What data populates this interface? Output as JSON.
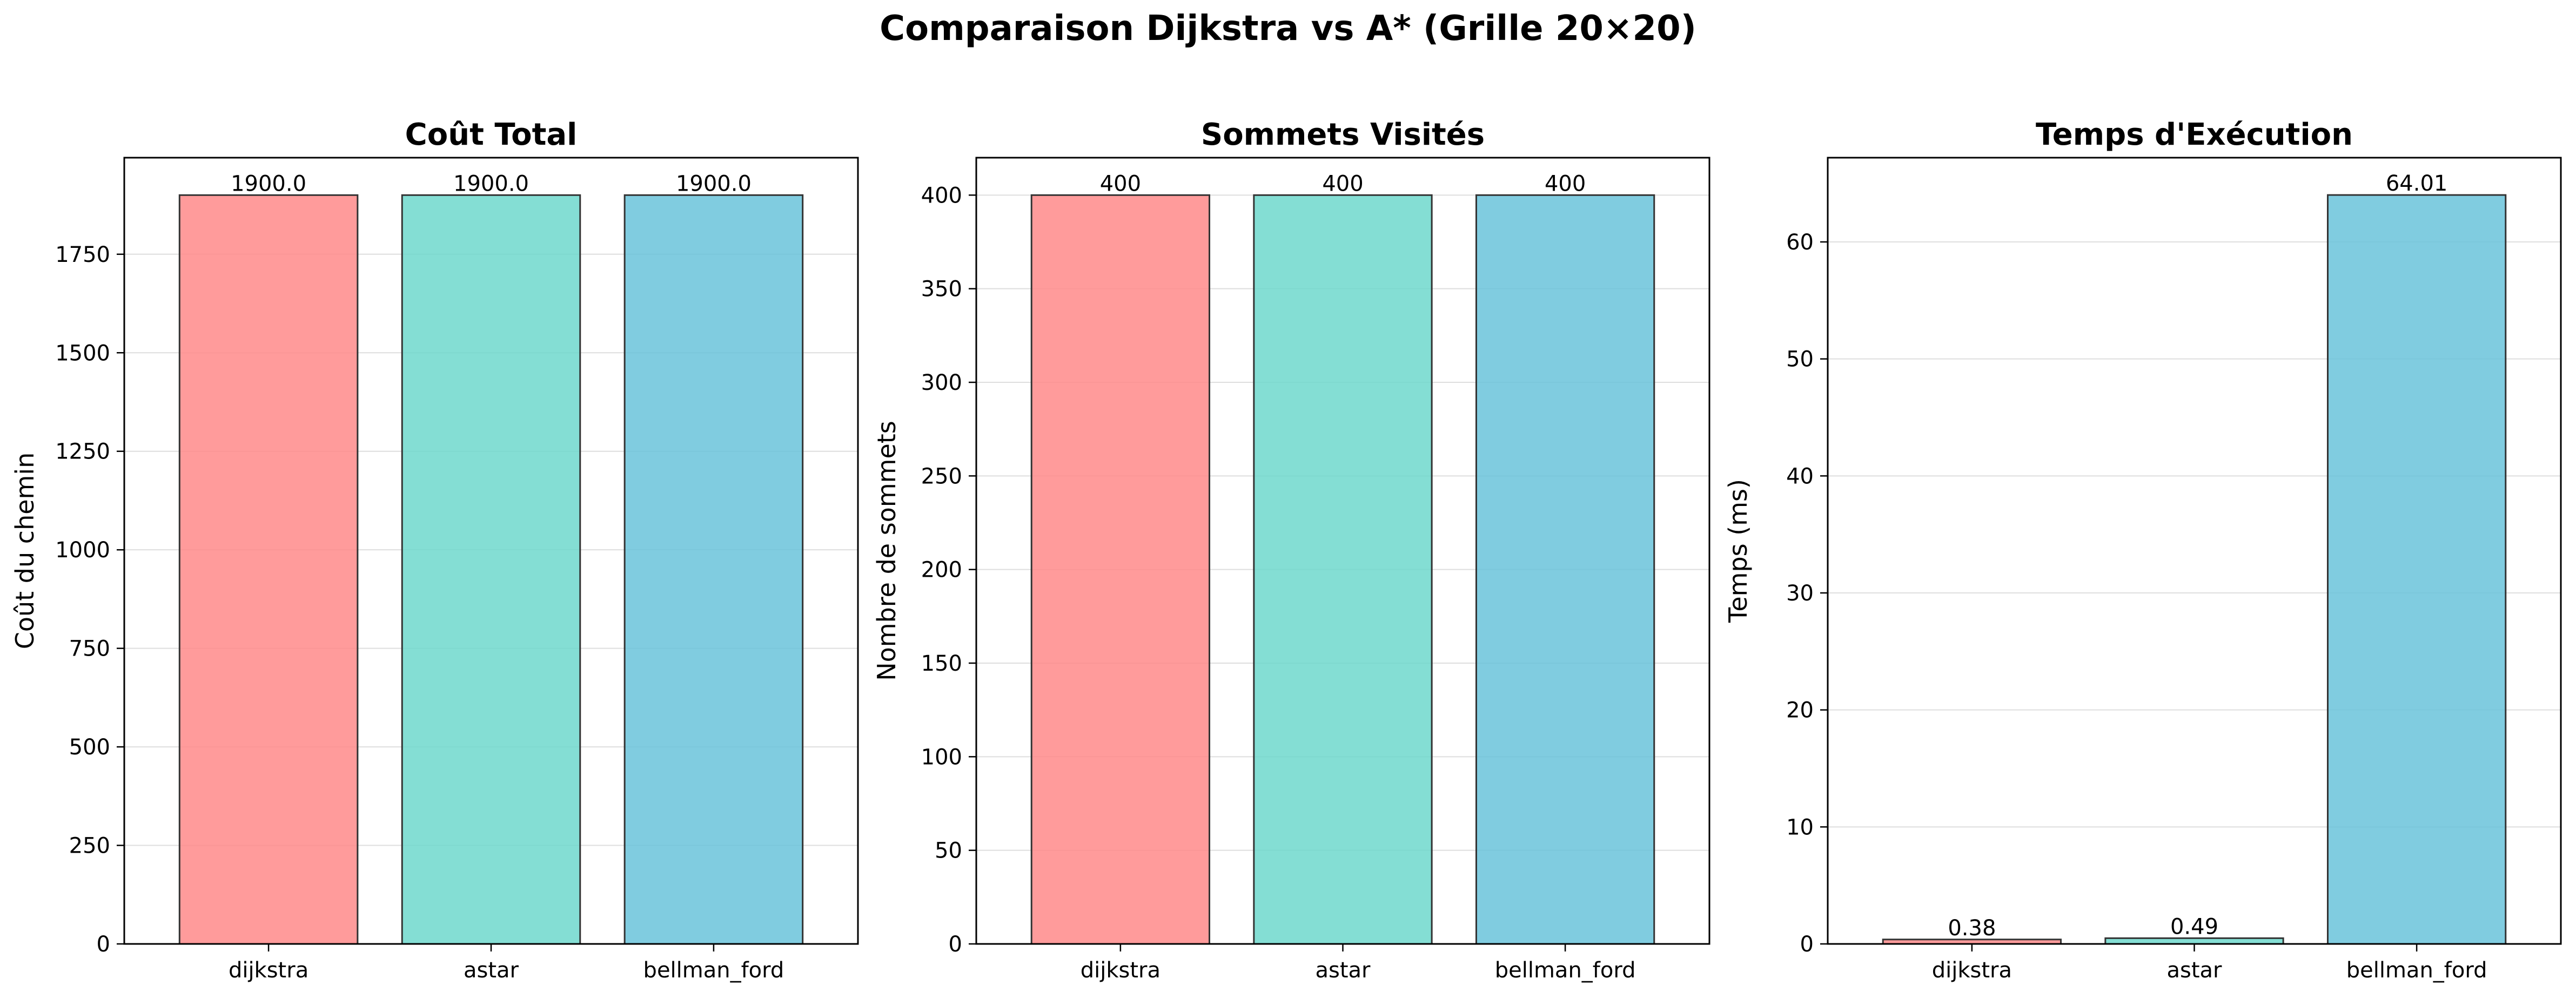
{
  "figure": {
    "suptitle": "Comparaison Dijkstra vs A* (Grille 20×20)"
  },
  "chart_data": [
    {
      "type": "bar",
      "title": "Coût Total",
      "xlabel": "",
      "ylabel": "Coût du chemin",
      "categories": [
        "dijkstra",
        "astar",
        "bellman_ford"
      ],
      "values": [
        1900.0,
        1900.0,
        1900.0
      ],
      "value_labels": [
        "1900.0",
        "1900.0",
        "1900.0"
      ],
      "ylim": [
        0,
        1995
      ],
      "yticks": [
        0,
        250,
        500,
        750,
        1000,
        1250,
        1500,
        1750
      ],
      "grid": "y",
      "colors": [
        "#FF8A8A",
        "#6FD8CC",
        "#6AC3DA"
      ]
    },
    {
      "type": "bar",
      "title": "Sommets Visités",
      "xlabel": "",
      "ylabel": "Nombre de sommets",
      "categories": [
        "dijkstra",
        "astar",
        "bellman_ford"
      ],
      "values": [
        400,
        400,
        400
      ],
      "value_labels": [
        "400",
        "400",
        "400"
      ],
      "ylim": [
        0,
        420
      ],
      "yticks": [
        0,
        50,
        100,
        150,
        200,
        250,
        300,
        350,
        400
      ],
      "grid": "y",
      "colors": [
        "#FF8A8A",
        "#6FD8CC",
        "#6AC3DA"
      ]
    },
    {
      "type": "bar",
      "title": "Temps d'Exécution",
      "xlabel": "",
      "ylabel": "Temps (ms)",
      "categories": [
        "dijkstra",
        "astar",
        "bellman_ford"
      ],
      "values": [
        0.38,
        0.49,
        64.01
      ],
      "value_labels": [
        "0.38",
        "0.49",
        "64.01"
      ],
      "ylim": [
        0,
        67.2
      ],
      "yticks": [
        0,
        10,
        20,
        30,
        40,
        50,
        60
      ],
      "grid": "y",
      "colors": [
        "#FF8A8A",
        "#6FD8CC",
        "#6AC3DA"
      ]
    }
  ]
}
